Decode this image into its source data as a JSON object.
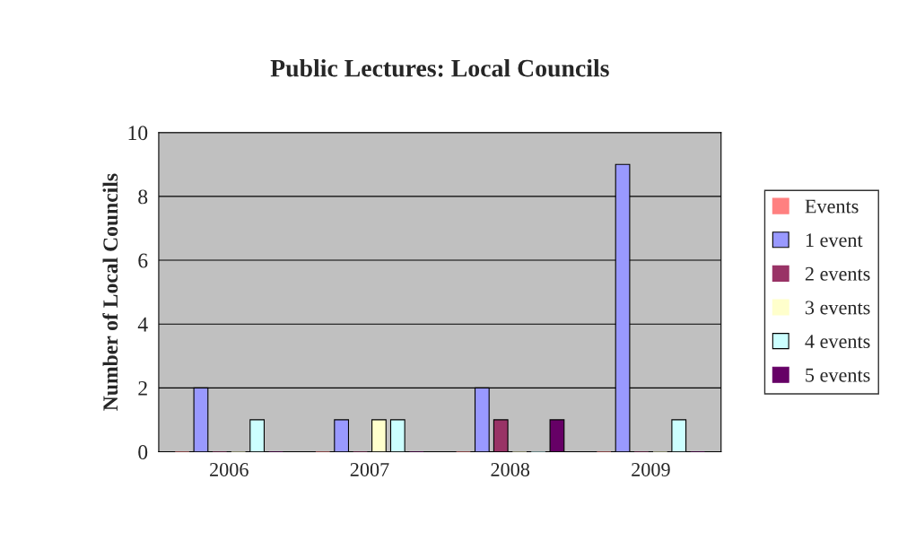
{
  "chart_data": {
    "type": "bar",
    "title": "Public Lectures: Local Councils",
    "ylabel": "Number of Local Councils",
    "categories": [
      "2006",
      "2007",
      "2008",
      "2009"
    ],
    "series": [
      {
        "name": "Events",
        "color": "#ff8080",
        "values": [
          0,
          0,
          0,
          0
        ]
      },
      {
        "name": "1 event",
        "color": "#9999ff",
        "values": [
          2,
          1,
          2,
          9
        ]
      },
      {
        "name": "2 events",
        "color": "#993366",
        "values": [
          0,
          0,
          1,
          0
        ]
      },
      {
        "name": "3 events",
        "color": "#ffffcc",
        "values": [
          0,
          1,
          0,
          0
        ]
      },
      {
        "name": "4 events",
        "color": "#ccffff",
        "values": [
          1,
          1,
          0,
          1
        ]
      },
      {
        "name": "5 events",
        "color": "#660066",
        "values": [
          0,
          0,
          1,
          0
        ]
      }
    ],
    "ylim": [
      0,
      10
    ],
    "yticks": [
      0,
      2,
      4,
      6,
      8,
      10
    ],
    "grid": "y",
    "legend": "right"
  }
}
